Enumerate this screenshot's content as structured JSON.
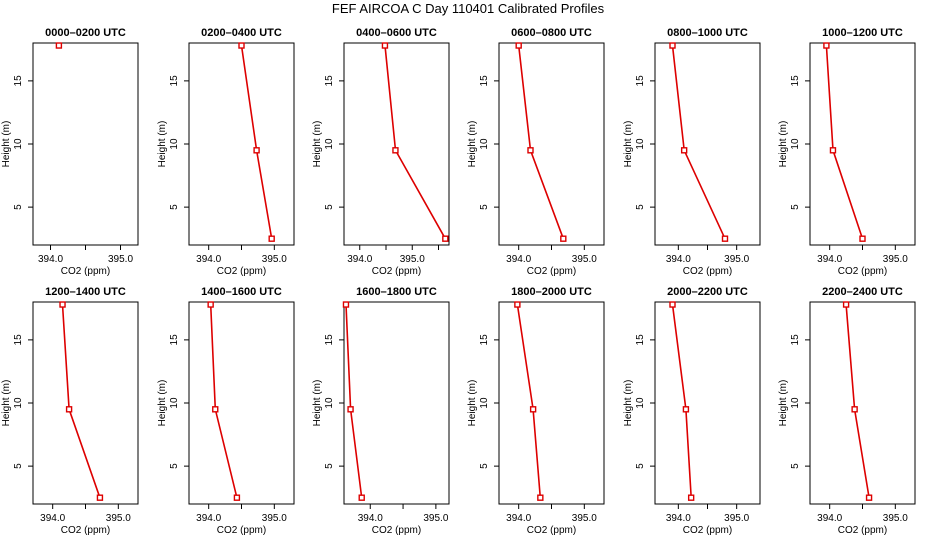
{
  "title": "FEF AIRCOA C  Day 110401  Calibrated Profiles",
  "colors": {
    "profile": "#dd0000",
    "axis": "#000000",
    "background": "#ffffff"
  },
  "chart_data": [
    {
      "type": "line",
      "title": "0000–0200 UTC",
      "xlabel": "CO2 (ppm)",
      "ylabel": "Height (m)",
      "xlim": [
        393.75,
        395.25
      ],
      "ylim": [
        2,
        18
      ],
      "xticks": [
        394.0,
        394.5,
        395.0
      ],
      "xticklabels": [
        "394.0",
        "",
        "395.0"
      ],
      "yticks": [
        5,
        10,
        15
      ],
      "points": [
        {
          "x": 394.12,
          "y": 17.8
        }
      ]
    },
    {
      "type": "line",
      "title": "0200–0400 UTC",
      "xlabel": "CO2 (ppm)",
      "ylabel": "Height (m)",
      "xlim": [
        393.7,
        395.3
      ],
      "ylim": [
        2,
        18
      ],
      "xticks": [
        394.0,
        394.5,
        395.0
      ],
      "xticklabels": [
        "394.0",
        "",
        "395.0"
      ],
      "yticks": [
        5,
        10,
        15
      ],
      "points": [
        {
          "x": 394.5,
          "y": 17.8
        },
        {
          "x": 394.73,
          "y": 9.5
        },
        {
          "x": 394.96,
          "y": 2.5
        }
      ]
    },
    {
      "type": "line",
      "title": "0400–0600 UTC",
      "xlabel": "CO2 (ppm)",
      "ylabel": "Height (m)",
      "xlim": [
        393.7,
        395.7
      ],
      "ylim": [
        2,
        18
      ],
      "xticks": [
        394.0,
        394.5,
        395.0,
        395.5
      ],
      "xticklabels": [
        "394.0",
        "",
        "395.0",
        ""
      ],
      "yticks": [
        5,
        10,
        15
      ],
      "points": [
        {
          "x": 394.48,
          "y": 17.8
        },
        {
          "x": 394.68,
          "y": 9.5
        },
        {
          "x": 395.63,
          "y": 2.5
        }
      ]
    },
    {
      "type": "line",
      "title": "0600–0800 UTC",
      "xlabel": "CO2 (ppm)",
      "ylabel": "Height (m)",
      "xlim": [
        393.7,
        395.3
      ],
      "ylim": [
        2,
        18
      ],
      "xticks": [
        394.0,
        394.5,
        395.0
      ],
      "xticklabels": [
        "394.0",
        "",
        "395.0"
      ],
      "yticks": [
        5,
        10,
        15
      ],
      "points": [
        {
          "x": 394.0,
          "y": 17.8
        },
        {
          "x": 394.18,
          "y": 9.5
        },
        {
          "x": 394.68,
          "y": 2.5
        }
      ]
    },
    {
      "type": "line",
      "title": "0800–1000 UTC",
      "xlabel": "CO2 (ppm)",
      "ylabel": "Height (m)",
      "xlim": [
        393.6,
        395.4
      ],
      "ylim": [
        2,
        18
      ],
      "xticks": [
        394.0,
        394.5,
        395.0
      ],
      "xticklabels": [
        "394.0",
        "",
        "395.0"
      ],
      "yticks": [
        5,
        10,
        15
      ],
      "points": [
        {
          "x": 393.9,
          "y": 17.8
        },
        {
          "x": 394.1,
          "y": 9.5
        },
        {
          "x": 394.8,
          "y": 2.5
        }
      ]
    },
    {
      "type": "line",
      "title": "1000–1200 UTC",
      "xlabel": "CO2 (ppm)",
      "ylabel": "Height (m)",
      "xlim": [
        393.7,
        395.3
      ],
      "ylim": [
        2,
        18
      ],
      "xticks": [
        394.0,
        394.5,
        395.0
      ],
      "xticklabels": [
        "394.0",
        "",
        "395.0"
      ],
      "yticks": [
        5,
        10,
        15
      ],
      "points": [
        {
          "x": 393.95,
          "y": 17.8
        },
        {
          "x": 394.05,
          "y": 9.5
        },
        {
          "x": 394.5,
          "y": 2.5
        }
      ]
    },
    {
      "type": "line",
      "title": "1200–1400 UTC",
      "xlabel": "CO2 (ppm)",
      "ylabel": "Height (m)",
      "xlim": [
        393.7,
        395.3
      ],
      "ylim": [
        2,
        18
      ],
      "xticks": [
        394.0,
        394.5,
        395.0
      ],
      "xticklabels": [
        "394.0",
        "",
        "395.0"
      ],
      "yticks": [
        5,
        10,
        15
      ],
      "points": [
        {
          "x": 394.15,
          "y": 17.8
        },
        {
          "x": 394.25,
          "y": 9.5
        },
        {
          "x": 394.72,
          "y": 2.5
        }
      ]
    },
    {
      "type": "line",
      "title": "1400–1600 UTC",
      "xlabel": "CO2 (ppm)",
      "ylabel": "Height (m)",
      "xlim": [
        393.7,
        395.3
      ],
      "ylim": [
        2,
        18
      ],
      "xticks": [
        394.0,
        394.5,
        395.0
      ],
      "xticklabels": [
        "394.0",
        "",
        "395.0"
      ],
      "yticks": [
        5,
        10,
        15
      ],
      "points": [
        {
          "x": 394.03,
          "y": 17.8
        },
        {
          "x": 394.1,
          "y": 9.5
        },
        {
          "x": 394.43,
          "y": 2.5
        }
      ]
    },
    {
      "type": "line",
      "title": "1600–1800 UTC",
      "xlabel": "CO2 (ppm)",
      "ylabel": "Height (m)",
      "xlim": [
        393.6,
        395.2
      ],
      "ylim": [
        2,
        18
      ],
      "xticks": [
        394.0,
        394.5,
        395.0
      ],
      "xticklabels": [
        "394.0",
        "",
        "395.0"
      ],
      "yticks": [
        5,
        10,
        15
      ],
      "points": [
        {
          "x": 393.63,
          "y": 17.8
        },
        {
          "x": 393.7,
          "y": 9.5
        },
        {
          "x": 393.87,
          "y": 2.5
        }
      ]
    },
    {
      "type": "line",
      "title": "1800–2000 UTC",
      "xlabel": "CO2 (ppm)",
      "ylabel": "Height (m)",
      "xlim": [
        393.7,
        395.3
      ],
      "ylim": [
        2,
        18
      ],
      "xticks": [
        394.0,
        394.5,
        395.0
      ],
      "xticklabels": [
        "394.0",
        "",
        "395.0"
      ],
      "yticks": [
        5,
        10,
        15
      ],
      "points": [
        {
          "x": 393.98,
          "y": 17.8
        },
        {
          "x": 394.22,
          "y": 9.5
        },
        {
          "x": 394.33,
          "y": 2.5
        }
      ]
    },
    {
      "type": "line",
      "title": "2000–2200 UTC",
      "xlabel": "CO2 (ppm)",
      "ylabel": "Height (m)",
      "xlim": [
        393.6,
        395.4
      ],
      "ylim": [
        2,
        18
      ],
      "xticks": [
        394.0,
        394.5,
        395.0
      ],
      "xticklabels": [
        "394.0",
        "",
        "395.0"
      ],
      "yticks": [
        5,
        10,
        15
      ],
      "points": [
        {
          "x": 393.9,
          "y": 17.8
        },
        {
          "x": 394.13,
          "y": 9.5
        },
        {
          "x": 394.22,
          "y": 2.5
        }
      ]
    },
    {
      "type": "line",
      "title": "2200–2400 UTC",
      "xlabel": "CO2 (ppm)",
      "ylabel": "Height (m)",
      "xlim": [
        393.7,
        395.3
      ],
      "ylim": [
        2,
        18
      ],
      "xticks": [
        394.0,
        394.5,
        395.0
      ],
      "xticklabels": [
        "394.0",
        "",
        "395.0"
      ],
      "yticks": [
        5,
        10,
        15
      ],
      "points": [
        {
          "x": 394.25,
          "y": 17.8
        },
        {
          "x": 394.38,
          "y": 9.5
        },
        {
          "x": 394.6,
          "y": 2.5
        }
      ]
    }
  ]
}
